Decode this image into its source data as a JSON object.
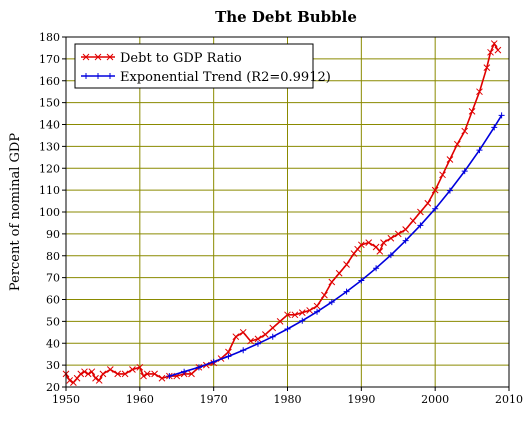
{
  "chart_data": {
    "type": "line",
    "title": "The Debt Bubble",
    "xlabel": "",
    "ylabel": "Percent of nominal GDP",
    "xlim": [
      1950,
      2010
    ],
    "ylim": [
      20,
      180
    ],
    "xticks": [
      1950,
      1960,
      1970,
      1980,
      1990,
      2000,
      2010
    ],
    "yticks": [
      20,
      30,
      40,
      50,
      60,
      70,
      80,
      90,
      100,
      110,
      120,
      130,
      140,
      150,
      160,
      170,
      180
    ],
    "grid": true,
    "legend_position": "top-left",
    "series": [
      {
        "name": "Debt to GDP Ratio",
        "color": "#e00000",
        "marker": "x",
        "x": [
          1950.0,
          1950.5,
          1951.0,
          1951.5,
          1952.0,
          1952.5,
          1953.0,
          1953.5,
          1954.0,
          1954.5,
          1955.0,
          1956.0,
          1957.0,
          1958.0,
          1959.0,
          1960.0,
          1960.5,
          1961.0,
          1962.0,
          1963.0,
          1964.0,
          1965.0,
          1966.0,
          1967.0,
          1968.0,
          1969.0,
          1970.0,
          1971.0,
          1972.0,
          1973.0,
          1974.0,
          1975.0,
          1976.0,
          1977.0,
          1978.0,
          1979.0,
          1980.0,
          1981.0,
          1982.0,
          1983.0,
          1984.0,
          1985.0,
          1986.0,
          1987.0,
          1988.0,
          1989.0,
          1989.5,
          1990.0,
          1991.0,
          1992.0,
          1992.5,
          1993.0,
          1994.0,
          1995.0,
          1996.0,
          1997.0,
          1998.0,
          1999.0,
          2000.0,
          2001.0,
          2002.0,
          2003.0,
          2004.0,
          2005.0,
          2006.0,
          2007.0,
          2007.5,
          2008.0,
          2008.5
        ],
        "y": [
          26,
          23,
          22,
          24,
          26,
          27,
          26,
          27,
          24,
          23,
          26,
          28,
          26,
          26,
          28,
          29,
          25,
          26,
          26,
          24,
          25,
          25,
          26,
          26,
          29,
          30,
          31,
          33,
          36,
          43,
          45,
          41,
          42,
          44,
          47,
          50,
          53,
          53,
          54,
          55,
          57,
          62,
          68,
          72,
          76,
          81,
          83,
          85,
          86,
          84,
          82,
          86,
          88,
          90,
          92,
          96,
          100,
          104,
          110,
          117,
          124,
          131,
          137,
          146,
          155,
          166,
          173,
          177,
          174
        ]
      },
      {
        "name": "Exponential Trend (R2=0.9912)",
        "color": "#0000dd",
        "marker": "+",
        "x": [
          1964,
          1966,
          1968,
          1970,
          1972,
          1974,
          1976,
          1978,
          1980,
          1982,
          1984,
          1986,
          1988,
          1990,
          1992,
          1994,
          1996,
          1998,
          2000,
          2002,
          2004,
          2006,
          2008,
          2009
        ],
        "y": [
          25,
          27,
          29,
          31.5,
          34,
          36.8,
          39.8,
          43,
          46.5,
          50.3,
          54.4,
          58.8,
          63.6,
          68.7,
          74.3,
          80.3,
          86.9,
          93.9,
          101.5,
          109.8,
          118.7,
          128.3,
          138.7,
          144.2
        ]
      }
    ]
  }
}
